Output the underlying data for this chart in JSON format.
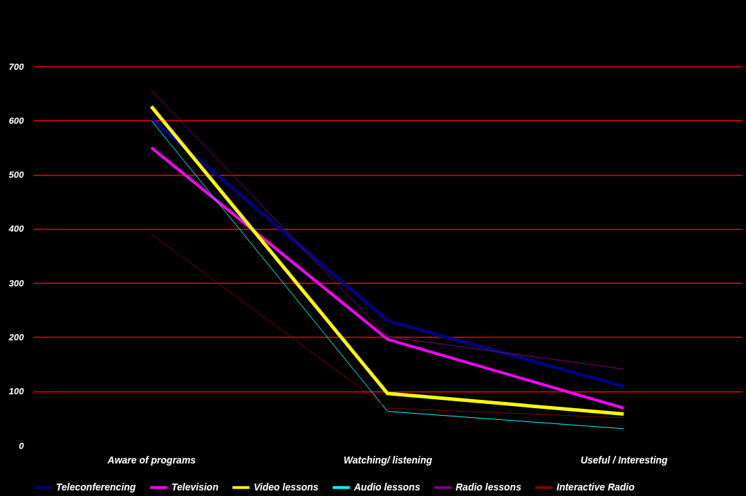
{
  "chart_data": {
    "type": "line",
    "categories": [
      "Aware of programs",
      "Watching/ listening",
      "Useful / Interesting"
    ],
    "series": [
      {
        "name": "Teleconferencing",
        "color": "#000080",
        "values": [
          603,
          230,
          109
        ]
      },
      {
        "name": "Television",
        "color": "#ff00ff",
        "values": [
          550,
          196,
          69
        ]
      },
      {
        "name": "Video lessons",
        "color": "#ffff00",
        "values": [
          626,
          96,
          58
        ]
      },
      {
        "name": "Audio lessons",
        "color": "#00ffff",
        "values": [
          600,
          63,
          31
        ]
      },
      {
        "name": "Radio lessons",
        "color": "#800080",
        "values": [
          656,
          201,
          141
        ]
      },
      {
        "name": "Interactive Radio",
        "color": "#800000",
        "values": [
          390,
          69,
          51
        ]
      }
    ],
    "ylim": [
      0,
      700
    ],
    "yticks": [
      0,
      100,
      200,
      300,
      400,
      500,
      600,
      700
    ],
    "grid": "y",
    "legend": "bottom",
    "marker": "none",
    "line_style": "solid"
  }
}
